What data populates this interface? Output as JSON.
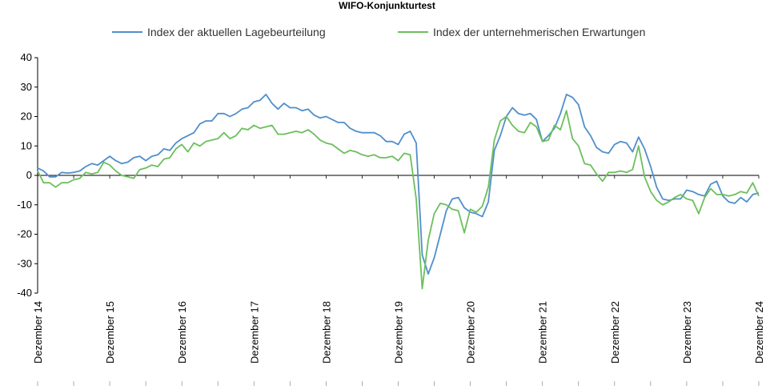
{
  "chart_data": {
    "type": "line",
    "title": "WIFO-Konjunkturtest",
    "xlabel": "",
    "ylabel": "",
    "ylim": [
      -40,
      40
    ],
    "yticks": [
      40,
      30,
      20,
      10,
      0,
      -10,
      -20,
      -30,
      -40
    ],
    "xticks": [
      "Dezember 14",
      "Dezember 15",
      "Dezember 16",
      "Dezember 17",
      "Dezember 18",
      "Dezember 19",
      "Dezember 20",
      "Dezember 21",
      "Dezember 22",
      "Dezember 23",
      "Dezember 24"
    ],
    "grid": false,
    "legend_position": "top",
    "series": [
      {
        "name": "Index der aktuellen Lagebeurteilung",
        "color": "#4f8fcb",
        "values": [
          2.5,
          1.5,
          -0.5,
          -0.5,
          1.0,
          0.8,
          1.0,
          1.5,
          3.0,
          4.0,
          3.5,
          5.0,
          6.5,
          5.0,
          4.0,
          4.5,
          6.0,
          6.5,
          5.0,
          6.5,
          7.0,
          9.0,
          8.5,
          11.0,
          12.5,
          13.5,
          14.5,
          17.5,
          18.5,
          18.5,
          21.0,
          21.0,
          20.0,
          21.0,
          22.5,
          23.0,
          25.0,
          25.5,
          27.5,
          24.5,
          22.5,
          24.5,
          23.0,
          23.0,
          22.0,
          22.5,
          20.5,
          19.5,
          20.0,
          19.0,
          18.0,
          18.0,
          16.0,
          15.0,
          14.5,
          14.5,
          14.5,
          13.5,
          11.5,
          11.5,
          10.5,
          14.0,
          15.0,
          11.0,
          -27.0,
          -33.5,
          -28.0,
          -20.0,
          -12.0,
          -8.0,
          -7.5,
          -11.0,
          -12.5,
          -13.0,
          -14.0,
          -9.0,
          8.5,
          13.5,
          20.0,
          23.0,
          21.0,
          20.5,
          21.0,
          19.0,
          11.5,
          13.5,
          16.0,
          21.0,
          27.5,
          26.5,
          24.0,
          16.5,
          13.5,
          9.5,
          8.0,
          7.5,
          10.5,
          11.5,
          11.0,
          8.0,
          13.0,
          9.0,
          3.0,
          -4.0,
          -8.0,
          -8.5,
          -8.0,
          -8.0,
          -5.0,
          -5.5,
          -6.5,
          -7.0,
          -3.0,
          -2.0,
          -7.0,
          -9.0,
          -9.5,
          -7.5,
          -9.0,
          -6.5,
          -6.0
        ]
      },
      {
        "name": "Index der unternehmerischen Erwartungen",
        "color": "#6cbf5c",
        "values": [
          1.5,
          -2.5,
          -2.5,
          -4.0,
          -2.5,
          -2.5,
          -1.5,
          -1.0,
          1.0,
          0.5,
          1.0,
          4.5,
          3.5,
          1.5,
          0.0,
          -0.5,
          -1.0,
          2.0,
          2.5,
          3.5,
          3.0,
          5.5,
          6.0,
          9.0,
          10.5,
          8.0,
          11.0,
          10.0,
          11.5,
          12.0,
          12.5,
          14.5,
          12.5,
          13.5,
          16.0,
          15.5,
          17.0,
          16.0,
          16.5,
          17.0,
          14.0,
          14.0,
          14.5,
          15.0,
          14.5,
          15.5,
          14.0,
          12.0,
          11.0,
          10.5,
          9.0,
          7.5,
          8.5,
          8.0,
          7.0,
          6.5,
          7.0,
          6.0,
          6.0,
          6.5,
          5.0,
          7.5,
          7.0,
          -8.0,
          -38.5,
          -22.0,
          -13.0,
          -9.5,
          -10.0,
          -11.5,
          -12.0,
          -19.5,
          -11.5,
          -12.5,
          -10.5,
          -4.0,
          12.0,
          18.5,
          20.0,
          17.0,
          15.0,
          14.5,
          18.0,
          16.5,
          11.5,
          12.0,
          17.0,
          15.5,
          22.0,
          12.5,
          10.0,
          4.0,
          3.5,
          0.5,
          -2.0,
          1.0,
          1.0,
          1.5,
          1.0,
          2.0,
          10.0,
          -0.5,
          -5.5,
          -8.5,
          -10.0,
          -9.0,
          -7.5,
          -6.5,
          -8.0,
          -8.5,
          -13.0,
          -7.5,
          -4.5,
          -6.5,
          -6.5,
          -7.0,
          -6.5,
          -5.5,
          -6.0,
          -2.5,
          -7.0
        ]
      }
    ]
  }
}
